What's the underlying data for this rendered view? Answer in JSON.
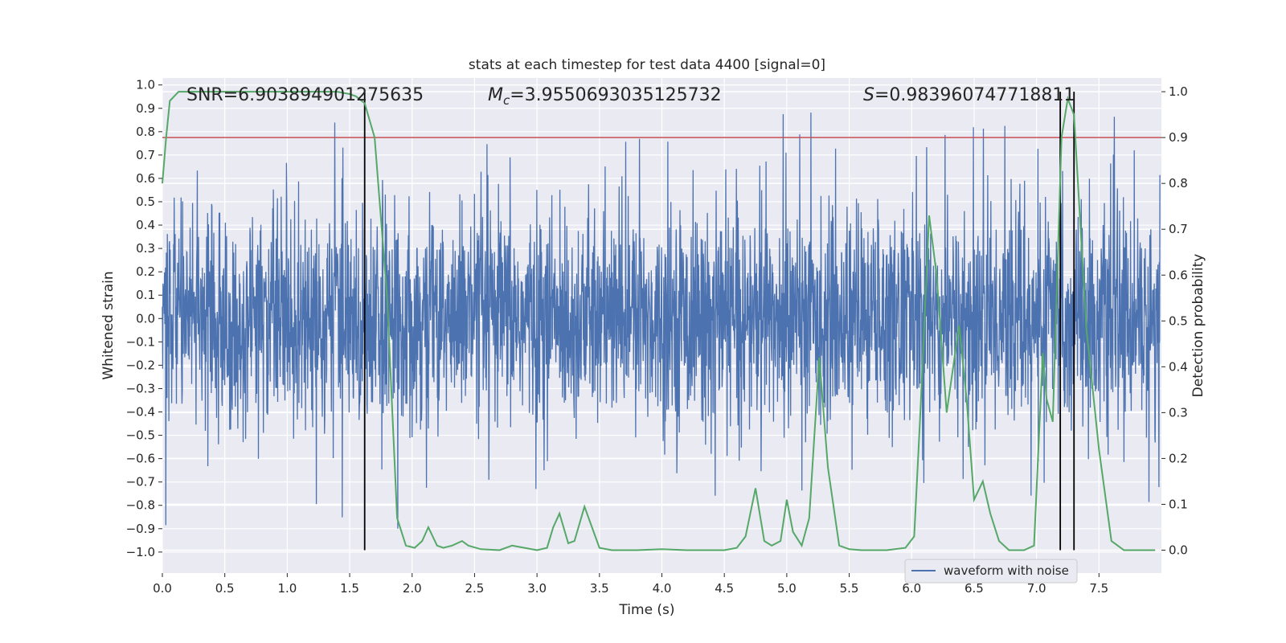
{
  "chart_data": {
    "type": "line",
    "title": "stats at each timestep for test data 4400 [signal=0]",
    "xlabel": "Time (s)",
    "ylabel_left": "Whitened strain",
    "ylabel_right": "Detection probability",
    "xlim": [
      0.0,
      8.0
    ],
    "ylim_left": [
      -1.09,
      1.03
    ],
    "ylim_right": [
      -0.05,
      1.03
    ],
    "grid": true,
    "x_ticks": [
      "0.0",
      "0.5",
      "1.0",
      "1.5",
      "2.0",
      "2.5",
      "3.0",
      "3.5",
      "4.0",
      "4.5",
      "5.0",
      "5.5",
      "6.0",
      "6.5",
      "7.0",
      "7.5"
    ],
    "y_left_ticks": [
      "1.0",
      "0.9",
      "0.8",
      "0.7",
      "0.6",
      "0.5",
      "0.4",
      "0.3",
      "0.2",
      "0.1",
      "0.0",
      "−0.1",
      "−0.2",
      "−0.3",
      "−0.4",
      "−0.5",
      "−0.6",
      "−0.7",
      "−0.8",
      "−0.9",
      "−1.0"
    ],
    "y_right_ticks": [
      "1.0",
      "0.9",
      "0.8",
      "0.7",
      "0.6",
      "0.5",
      "0.4",
      "0.3",
      "0.2",
      "0.1",
      "0.0"
    ],
    "annotations": {
      "snr": "SNR=6.903894901275635",
      "mc_symbol": "M",
      "mc_sub": "c",
      "mc_value": "=3.9550693035125732",
      "s_symbol": "S",
      "s_value": "=0.983960747718811"
    },
    "legend": {
      "label": "waveform with noise",
      "location": "lower right"
    },
    "colors": {
      "waveform": "#4c72b0",
      "probability": "#55a868",
      "threshold": "#c44e52",
      "marker": "#000000",
      "background": "#eaeaf2",
      "grid": "#ffffff"
    },
    "threshold": 0.9,
    "vertical_markers_s": [
      1.62,
      7.19,
      7.3
    ],
    "series": [
      {
        "name": "waveform with noise",
        "axis": "left",
        "description_values": "dense noisy strain, mostly within ±0.4, peaks to ±0.9",
        "amplitude_core": 0.4,
        "amplitude_peak": 0.9
      },
      {
        "name": "detection probability",
        "axis": "right",
        "x": [
          0.0,
          0.03,
          0.06,
          0.13,
          0.2,
          0.3,
          0.5,
          0.8,
          1.0,
          1.2,
          1.4,
          1.5,
          1.55,
          1.62,
          1.7,
          1.8,
          1.88,
          1.95,
          2.02,
          2.08,
          2.13,
          2.2,
          2.25,
          2.32,
          2.4,
          2.45,
          2.55,
          2.7,
          2.8,
          2.9,
          3.0,
          3.08,
          3.13,
          3.18,
          3.25,
          3.3,
          3.38,
          3.5,
          3.6,
          3.8,
          4.0,
          4.2,
          4.3,
          4.5,
          4.6,
          4.67,
          4.75,
          4.82,
          4.88,
          4.95,
          5.0,
          5.05,
          5.12,
          5.18,
          5.26,
          5.33,
          5.42,
          5.5,
          5.6,
          5.8,
          5.95,
          6.02,
          6.07,
          6.14,
          6.2,
          6.28,
          6.38,
          6.44,
          6.5,
          6.57,
          6.63,
          6.7,
          6.78,
          6.9,
          6.98,
          7.05,
          7.08,
          7.13,
          7.2,
          7.25,
          7.3,
          7.4,
          7.5,
          7.6,
          7.7,
          7.95
        ],
        "y": [
          0.8,
          0.9,
          0.98,
          1.0,
          1.0,
          1.0,
          1.0,
          1.0,
          1.0,
          1.0,
          1.0,
          0.995,
          0.99,
          0.975,
          0.9,
          0.55,
          0.07,
          0.01,
          0.005,
          0.02,
          0.05,
          0.01,
          0.005,
          0.01,
          0.02,
          0.01,
          0.002,
          0.0,
          0.01,
          0.005,
          0.0,
          0.005,
          0.05,
          0.08,
          0.015,
          0.02,
          0.095,
          0.005,
          0.0,
          0.0,
          0.002,
          0.0,
          0.0,
          0.0,
          0.005,
          0.03,
          0.135,
          0.02,
          0.01,
          0.02,
          0.11,
          0.04,
          0.01,
          0.07,
          0.42,
          0.18,
          0.01,
          0.002,
          0.0,
          0.0,
          0.005,
          0.03,
          0.3,
          0.73,
          0.6,
          0.3,
          0.49,
          0.33,
          0.11,
          0.15,
          0.08,
          0.02,
          0.0,
          0.0,
          0.01,
          0.43,
          0.33,
          0.28,
          0.9,
          0.985,
          0.95,
          0.48,
          0.22,
          0.02,
          0.0,
          0.0
        ]
      }
    ]
  }
}
